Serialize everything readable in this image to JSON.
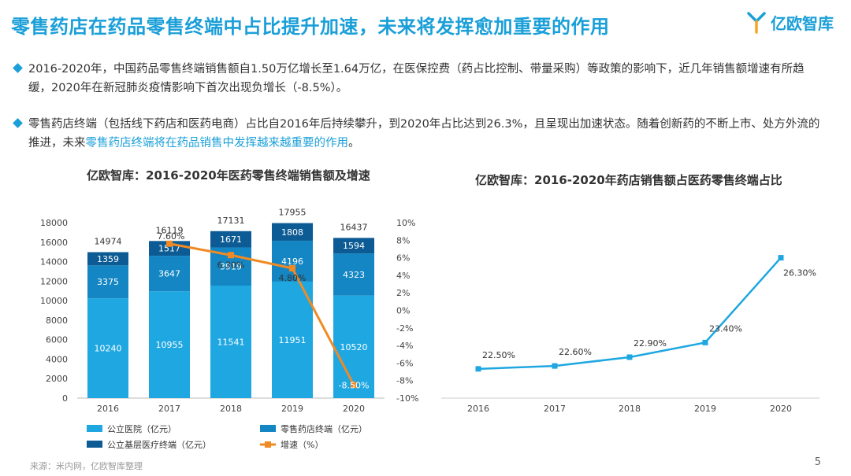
{
  "title": "零售药店在药品零售终端中占比提升加速，未来将发挥愈加重要的作用",
  "logo": {
    "text": "亿欧智库"
  },
  "bullets": [
    {
      "text": "2016-2020年，中国药品零售终端销售额自1.50万亿增长至1.64万亿，在医保控费（药占比控制、带量采购）等政策的影响下，近几年销售额增速有所趋缓，2020年在新冠肺炎疫情影响下首次出现负增长（-8.5%）。"
    },
    {
      "text_a": "零售药店终端（包括线下药店和医药电商）占比自2016年后持续攀升，到2020年占比达到26.3%，且呈现出加速状态。随着创新药的不断上市、处方外流的推进，未来",
      "highlight": "零售药店终端将在药品销售中发挥越来越重要的作用",
      "text_b": "。"
    }
  ],
  "footer": "来源：米内网，亿欧智库整理",
  "page_number": "5",
  "chart_data": [
    {
      "type": "bar",
      "stacked": true,
      "title": "亿欧智库：2016-2020年医药零售终端销售额及增速",
      "categories": [
        "2016",
        "2017",
        "2018",
        "2019",
        "2020"
      ],
      "totals": [
        14974,
        16119,
        17131,
        17955,
        16437
      ],
      "series": [
        {
          "name": "公立医院（亿元）",
          "values": [
            10240,
            10955,
            11541,
            11951,
            10520
          ],
          "color": "#1ea7e1"
        },
        {
          "name": "零售药店终端（亿元）",
          "values": [
            3375,
            3647,
            3919,
            4196,
            4323
          ],
          "color": "#1386c3"
        },
        {
          "name": "公立基层医疗终端（亿元）",
          "values": [
            1359,
            1517,
            1671,
            1808,
            1594
          ],
          "color": "#0d5b94"
        }
      ],
      "line_series": {
        "name": "增速（%）",
        "categories": [
          "2017",
          "2018",
          "2019",
          "2020"
        ],
        "values": [
          7.6,
          6.3,
          4.8,
          -8.5
        ],
        "labels": [
          "7.60%",
          "6.30%",
          "4.80%",
          "-8.50%"
        ],
        "color": "#f08a24"
      },
      "ylim_left": [
        0,
        18000
      ],
      "yticks_left": [
        "0",
        "2000",
        "4000",
        "6000",
        "8000",
        "10000",
        "12000",
        "14000",
        "16000",
        "18000"
      ],
      "ylim_right": [
        -10,
        10
      ],
      "yticks_right": [
        "-10%",
        "-8%",
        "-6%",
        "-4%",
        "-2%",
        "0%",
        "2%",
        "4%",
        "6%",
        "8%",
        "10%"
      ],
      "legend_position": "bottom",
      "grid": false
    },
    {
      "type": "line",
      "title": "亿欧智库：2016-2020年药店销售额占医药零售终端占比",
      "categories": [
        "2016",
        "2017",
        "2018",
        "2019",
        "2020"
      ],
      "values": [
        22.5,
        22.6,
        22.9,
        23.4,
        26.3
      ],
      "labels": [
        "22.50%",
        "22.60%",
        "22.90%",
        "23.40%",
        "26.30%"
      ],
      "color": "#1ea7e1",
      "grid": false
    }
  ]
}
